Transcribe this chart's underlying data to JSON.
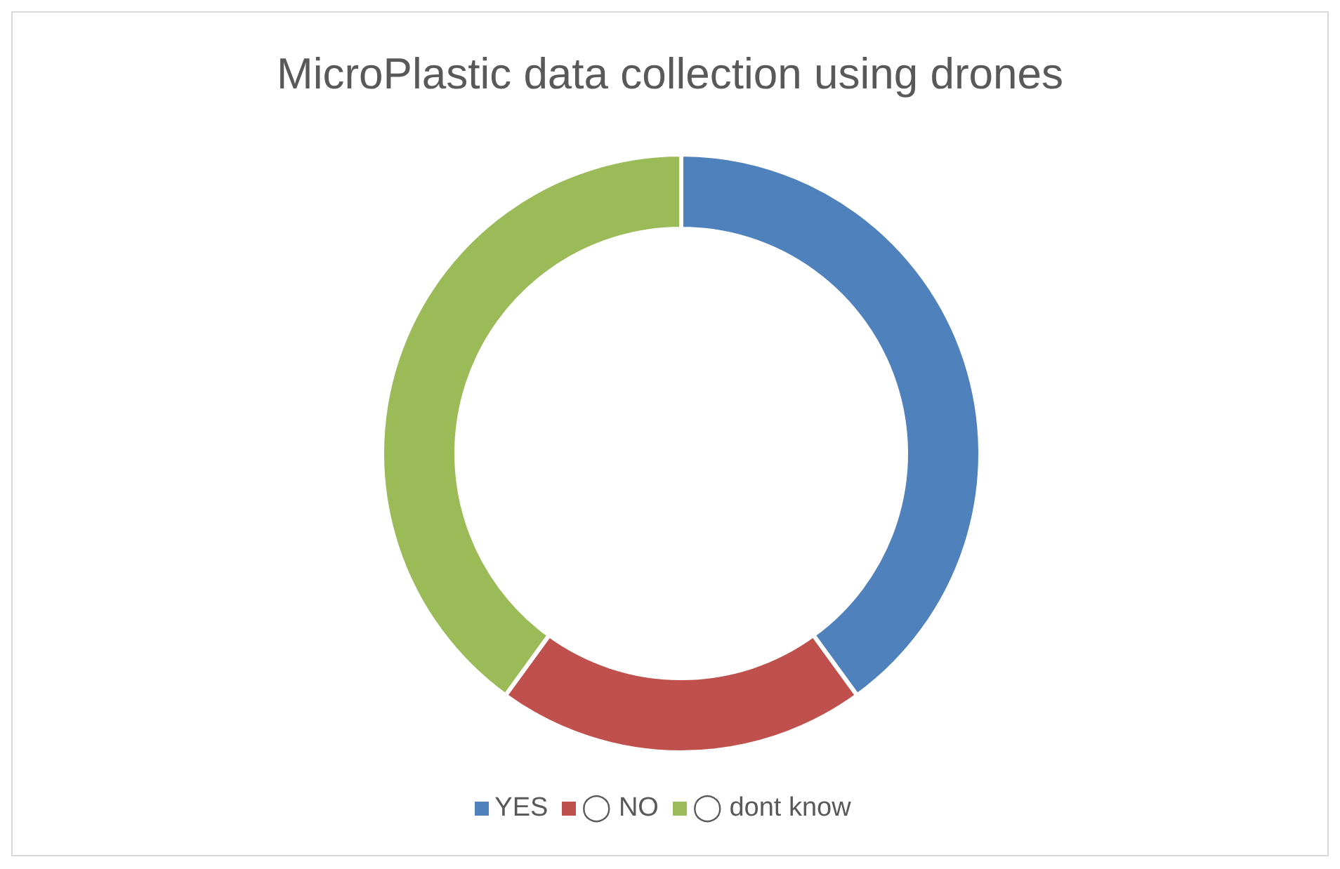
{
  "chart_data": {
    "type": "donut",
    "title": "MicroPlastic data collection using drones",
    "categories": [
      "YES",
      "◯ NO",
      "◯ dont know"
    ],
    "values": [
      40,
      20,
      40
    ],
    "colors": [
      "#4f81bd",
      "#c0504d",
      "#9bbb59"
    ],
    "legend": "bottom"
  }
}
